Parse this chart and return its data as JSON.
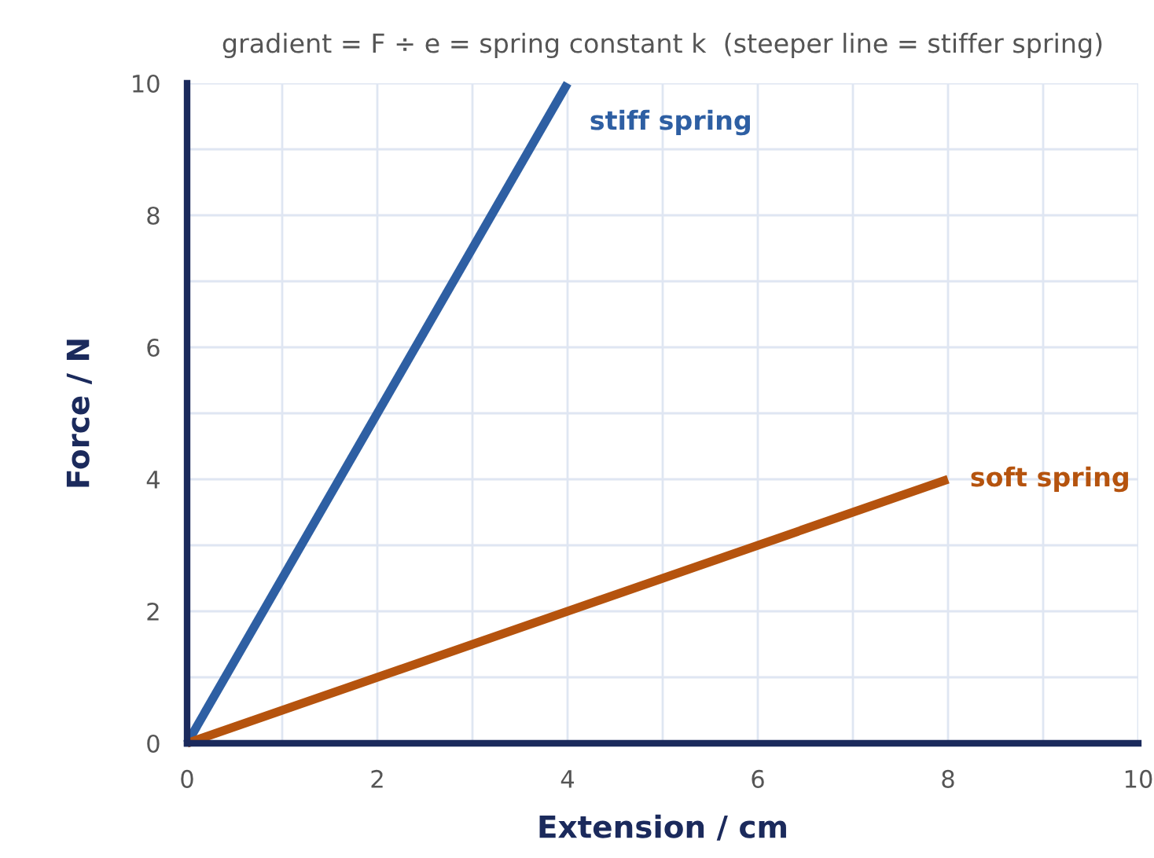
{
  "chart_data": {
    "type": "line",
    "title": "gradient = F ÷ e = spring constant k  (steeper line = stiffer spring)",
    "xlabel": "Extension / cm",
    "ylabel": "Force / N",
    "series": [
      {
        "name": "stiff spring",
        "color": "#2e5fa3",
        "x": [
          0,
          4
        ],
        "values": [
          0,
          10
        ]
      },
      {
        "name": "soft spring",
        "color": "#b5530e",
        "x": [
          0,
          8
        ],
        "values": [
          0,
          4
        ]
      }
    ],
    "xlim": [
      0,
      10
    ],
    "ylim": [
      0,
      10
    ],
    "xticks": [
      0,
      {
        "value": 1,
        "label": null
      },
      2,
      {
        "value": 3,
        "label": null
      },
      4,
      {
        "value": 5,
        "label": null
      },
      6,
      {
        "value": 7,
        "label": null
      },
      8,
      {
        "value": 9,
        "label": null
      },
      10
    ],
    "yticks": [
      0,
      {
        "value": 1,
        "label": null
      },
      2,
      {
        "value": 3,
        "label": null
      },
      4,
      {
        "value": 5,
        "label": null
      },
      6,
      {
        "value": 7,
        "label": null
      },
      8,
      {
        "value": 9,
        "label": null
      },
      10
    ],
    "grid": true,
    "legend": false,
    "marker": "none",
    "line_style": "solid"
  }
}
